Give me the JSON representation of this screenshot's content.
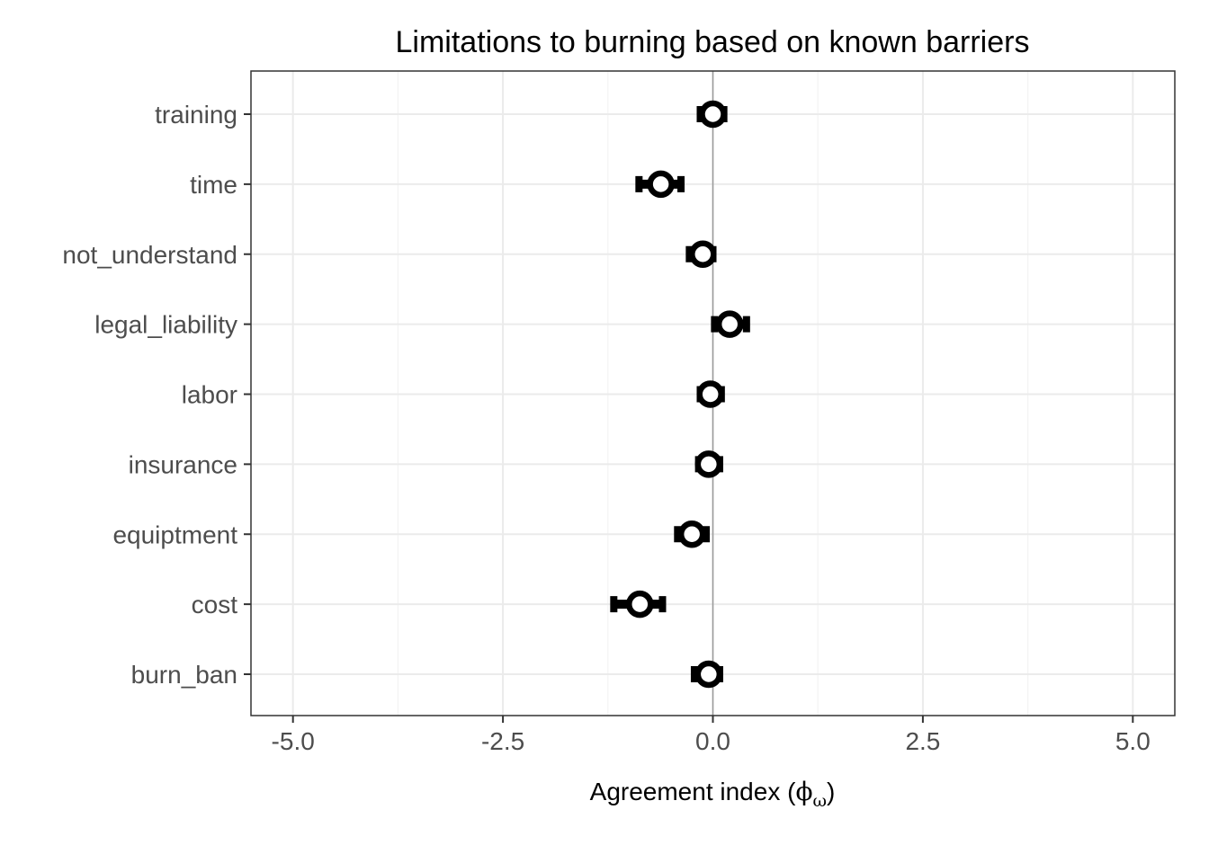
{
  "chart_data": {
    "type": "scatter",
    "title": "Limitations to burning based on known barriers",
    "xlabel_main": "Agreement index (",
    "xlabel_symbol": "ϕ",
    "xlabel_sub": "ω",
    "xlabel_close": ")",
    "xlim": [
      -5.5,
      5.5
    ],
    "x_ticks": [
      -5.0,
      -2.5,
      0.0,
      2.5,
      5.0
    ],
    "x_tick_labels": [
      "-5.0",
      "-2.5",
      "0.0",
      "2.5",
      "5.0"
    ],
    "reference_line_x": 0,
    "grid": true,
    "categories": [
      "training",
      "time",
      "not_understand",
      "legal_liability",
      "labor",
      "insurance",
      "equiptment",
      "cost",
      "burn_ban"
    ],
    "series": [
      {
        "points": [
          {
            "label": "training",
            "x": 0.0,
            "xmin": -0.15,
            "xmax": 0.13
          },
          {
            "label": "time",
            "x": -0.62,
            "xmin": -0.88,
            "xmax": -0.38
          },
          {
            "label": "not_understand",
            "x": -0.12,
            "xmin": -0.28,
            "xmax": 0.0
          },
          {
            "label": "legal_liability",
            "x": 0.2,
            "xmin": 0.02,
            "xmax": 0.4
          },
          {
            "label": "labor",
            "x": -0.03,
            "xmin": -0.15,
            "xmax": 0.1
          },
          {
            "label": "insurance",
            "x": -0.05,
            "xmin": -0.17,
            "xmax": 0.08
          },
          {
            "label": "equiptment",
            "x": -0.25,
            "xmin": -0.42,
            "xmax": -0.08
          },
          {
            "label": "cost",
            "x": -0.87,
            "xmin": -1.18,
            "xmax": -0.6
          },
          {
            "label": "burn_ban",
            "x": -0.05,
            "xmin": -0.22,
            "xmax": 0.08
          }
        ]
      }
    ]
  }
}
